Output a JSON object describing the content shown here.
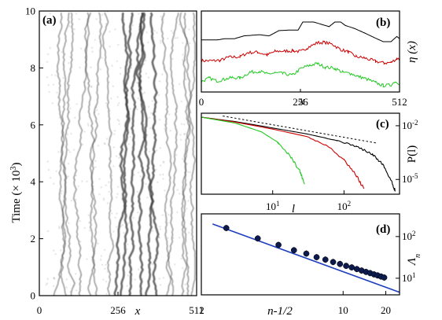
{
  "chart_data": [
    {
      "panel": "(a)",
      "type": "heatmap",
      "xlabel": "x",
      "ylabel": "Time (× 10",
      "ylabel_exp": "3",
      "ylabel_close": ")",
      "xlim": [
        0,
        512
      ],
      "ylim": [
        0,
        10
      ],
      "xticks": [
        "0",
        "256",
        "512"
      ],
      "yticks": [
        "0",
        "2",
        "4",
        "6",
        "8",
        "10"
      ],
      "grayscale": true
    },
    {
      "panel": "(b)",
      "type": "line",
      "xlabel": "x",
      "ylabel": "η (x)",
      "xlim": [
        0,
        512
      ],
      "xticks": [
        "0",
        "256",
        "512"
      ],
      "series": [
        {
          "color": "#000000",
          "values": [
            [
              0,
              8.0
            ],
            [
              40,
              8.0
            ],
            [
              60,
              8.1
            ],
            [
              85,
              8.1
            ],
            [
              110,
              8.35
            ],
            [
              150,
              8.45
            ],
            [
              175,
              8.35
            ],
            [
              200,
              8.8
            ],
            [
              225,
              8.85
            ],
            [
              250,
              8.85
            ],
            [
              262,
              9.55
            ],
            [
              290,
              9.55
            ],
            [
              305,
              9.4
            ],
            [
              330,
              9.15
            ],
            [
              345,
              9.55
            ],
            [
              360,
              9.55
            ],
            [
              372,
              9.25
            ],
            [
              395,
              9.0
            ],
            [
              425,
              8.55
            ],
            [
              450,
              8.15
            ],
            [
              470,
              7.85
            ],
            [
              490,
              7.85
            ],
            [
              505,
              8.3
            ],
            [
              512,
              8.1
            ]
          ]
        },
        {
          "color": "#cc0000",
          "values": [
            [
              0,
              6.2
            ],
            [
              30,
              6.2
            ],
            [
              50,
              6.25
            ],
            [
              70,
              6.5
            ],
            [
              100,
              6.55
            ],
            [
              120,
              6.9
            ],
            [
              145,
              6.95
            ],
            [
              170,
              6.7
            ],
            [
              190,
              7.0
            ],
            [
              215,
              7.05
            ],
            [
              238,
              7.05
            ],
            [
              258,
              7.0
            ],
            [
              272,
              7.3
            ],
            [
              300,
              7.75
            ],
            [
              318,
              7.8
            ],
            [
              340,
              7.6
            ],
            [
              358,
              7.2
            ],
            [
              380,
              6.95
            ],
            [
              400,
              6.55
            ],
            [
              420,
              6.45
            ],
            [
              450,
              6.15
            ],
            [
              472,
              6.0
            ],
            [
              490,
              6.05
            ],
            [
              505,
              6.4
            ],
            [
              512,
              6.3
            ]
          ]
        },
        {
          "color": "#22c922",
          "values": [
            [
              0,
              4.4
            ],
            [
              20,
              4.7
            ],
            [
              40,
              4.45
            ],
            [
              60,
              4.6
            ],
            [
              80,
              4.75
            ],
            [
              100,
              4.7
            ],
            [
              125,
              5.2
            ],
            [
              150,
              5.3
            ],
            [
              170,
              5.05
            ],
            [
              190,
              5.15
            ],
            [
              210,
              5.1
            ],
            [
              235,
              4.95
            ],
            [
              258,
              5.55
            ],
            [
              280,
              5.8
            ],
            [
              300,
              5.95
            ],
            [
              320,
              5.65
            ],
            [
              345,
              5.55
            ],
            [
              365,
              5.2
            ],
            [
              385,
              5.1
            ],
            [
              405,
              4.85
            ],
            [
              425,
              4.65
            ],
            [
              450,
              4.3
            ],
            [
              470,
              4.05
            ],
            [
              490,
              4.1
            ],
            [
              500,
              4.4
            ],
            [
              512,
              4.25
            ]
          ]
        }
      ]
    },
    {
      "panel": "(c)",
      "type": "line",
      "xscale": "log",
      "yscale": "log",
      "xlabel": "l",
      "ylabel": "P(l)",
      "xlim": [
        1,
        600
      ],
      "ylim": [
        1.5e-06,
        0.05
      ],
      "xticks": [
        {
          "value": 10,
          "base": "10",
          "exp": "1"
        },
        {
          "value": 100,
          "base": "10",
          "exp": "2"
        }
      ],
      "yticks": [
        {
          "value": 0.01,
          "base": "10",
          "exp": "-2"
        },
        {
          "value": 1e-05,
          "base": "10",
          "exp": "-5"
        }
      ],
      "guide_line": {
        "style": "dashed",
        "points": [
          [
            2,
            0.035
          ],
          [
            280,
            0.0011
          ]
        ]
      },
      "series": [
        {
          "color": "#000000",
          "points": [
            [
              1,
              0.03
            ],
            [
              3,
              0.017
            ],
            [
              10,
              0.0075
            ],
            [
              30,
              0.0035
            ],
            [
              80,
              0.0015
            ],
            [
              150,
              0.0007
            ],
            [
              250,
              0.00025
            ],
            [
              350,
              7e-05
            ],
            [
              450,
              1e-05
            ],
            [
              520,
              2.5e-06
            ]
          ]
        },
        {
          "color": "#cc0000",
          "points": [
            [
              1,
              0.03
            ],
            [
              3,
              0.016
            ],
            [
              10,
              0.0065
            ],
            [
              30,
              0.0025
            ],
            [
              60,
              0.0007
            ],
            [
              100,
              0.00012
            ],
            [
              150,
              1.5e-05
            ],
            [
              190,
              3e-06
            ]
          ]
        },
        {
          "color": "#22c922",
          "points": [
            [
              1,
              0.03
            ],
            [
              3,
              0.014
            ],
            [
              7,
              0.0045
            ],
            [
              12,
              0.0011
            ],
            [
              18,
              0.00018
            ],
            [
              24,
              3e-05
            ],
            [
              28,
              6e-06
            ]
          ]
        }
      ]
    },
    {
      "panel": "(d)",
      "type": "scatter",
      "xscale": "log",
      "yscale": "log",
      "xlabel": "n-1/2",
      "ylabel": "Λ",
      "ylabel_sub": "n",
      "xlim": [
        1,
        25
      ],
      "ylim": [
        4,
        350
      ],
      "xticks": [
        "1",
        "10",
        "20"
      ],
      "xtick_values": [
        1,
        10,
        20
      ],
      "yticks": [
        {
          "value": 10,
          "base": "10",
          "exp": "1"
        },
        {
          "value": 100,
          "base": "10",
          "exp": "2"
        }
      ],
      "fit_line": {
        "color": "#1f3fbf",
        "points": [
          [
            1.2,
            200
          ],
          [
            25,
            4.6
          ]
        ]
      },
      "points": [
        [
          1.5,
          160
        ],
        [
          2.5,
          90
        ],
        [
          3.5,
          63
        ],
        [
          4.5,
          47
        ],
        [
          5.5,
          39
        ],
        [
          6.5,
          32
        ],
        [
          7.5,
          28
        ],
        [
          8.5,
          24.5
        ],
        [
          9.5,
          22
        ],
        [
          10.5,
          19.8
        ],
        [
          11.5,
          18.2
        ],
        [
          12.5,
          16.6
        ],
        [
          13.5,
          15.3
        ],
        [
          14.5,
          14.2
        ],
        [
          15.5,
          13.3
        ],
        [
          16.5,
          12.4
        ],
        [
          17.5,
          11.7
        ],
        [
          18.5,
          11.0
        ],
        [
          19.5,
          10.4
        ]
      ]
    }
  ]
}
